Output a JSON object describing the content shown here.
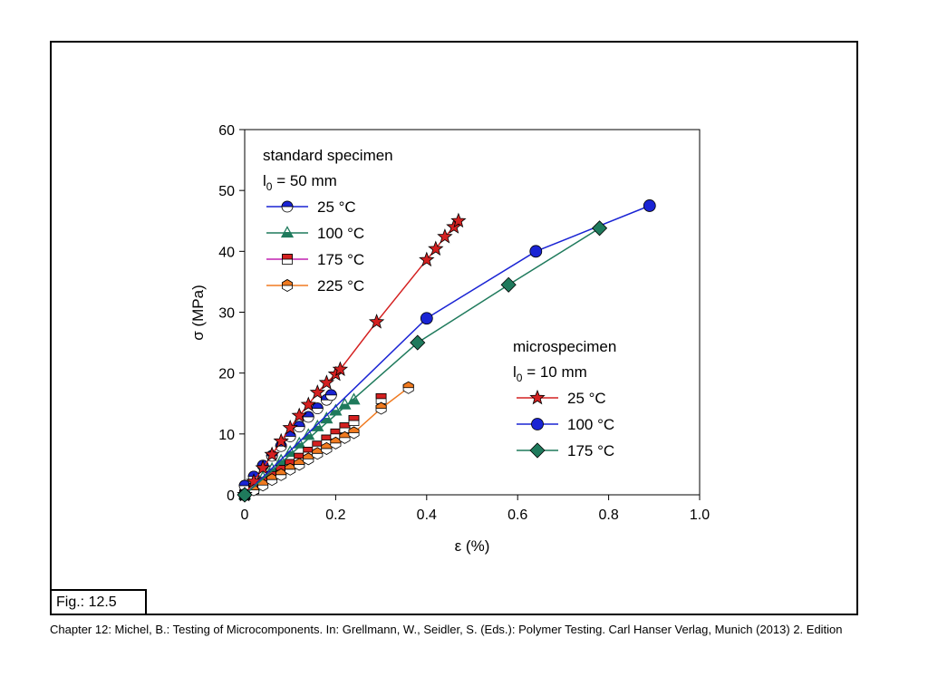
{
  "figure_label": "Fig.: 12.5",
  "caption": "Chapter 12: Michel, B.: Testing of Microcomponents. In: Grellmann, W., Seidler, S. (Eds.): Polymer Testing. Carl Hanser Verlag, Munich (2013) 2. Edition",
  "colors": {
    "red": "#d42020",
    "blue": "#1a24d4",
    "green": "#1f7a5c",
    "magenta": "#c020b0",
    "orange": "#f07a20"
  },
  "chart_data": {
    "type": "scatter",
    "xlabel": "ε (%)",
    "ylabel": "σ (MPa)",
    "xlim": [
      0,
      1.0
    ],
    "ylim": [
      0,
      60
    ],
    "xticks": [
      0,
      0.2,
      0.4,
      0.6,
      0.8,
      1.0
    ],
    "xtick_labels": [
      "0",
      "0.2",
      "0.4",
      "0.6",
      "0.8",
      "1.0"
    ],
    "yticks": [
      0,
      10,
      20,
      30,
      40,
      50,
      60
    ],
    "ytick_labels": [
      "0",
      "10",
      "20",
      "30",
      "40",
      "50",
      "60"
    ],
    "grid": false,
    "legends": [
      {
        "title_line1": "standard specimen",
        "title_line2_base": "l",
        "title_line2_sub": "0",
        "title_line2_rest": " = 50 mm",
        "placement": "top-left",
        "entries": [
          "25 °C",
          "100 °C",
          "175 °C",
          "225 °C"
        ]
      },
      {
        "title_line1": "microspecimen",
        "title_line2_base": "l",
        "title_line2_sub": "0",
        "title_line2_rest": " = 10 mm",
        "placement": "right",
        "entries": [
          "25 °C",
          "100 °C",
          "175 °C"
        ]
      }
    ],
    "series": [
      {
        "group": "standard",
        "color": "#1a24d4",
        "marker": "half-circle",
        "line": false,
        "x": [
          0.0,
          0.02,
          0.04,
          0.06,
          0.08,
          0.1,
          0.12,
          0.14,
          0.16,
          0.18,
          0.19
        ],
        "y": [
          1.5,
          3.0,
          4.8,
          6.4,
          8.0,
          9.6,
          11.2,
          12.8,
          14.2,
          15.6,
          16.4
        ]
      },
      {
        "group": "standard",
        "color": "#1f7a5c",
        "marker": "triangle",
        "line": false,
        "x": [
          0.0,
          0.02,
          0.04,
          0.06,
          0.08,
          0.1,
          0.12,
          0.14,
          0.16,
          0.18,
          0.2,
          0.22,
          0.24
        ],
        "y": [
          0.0,
          1.4,
          2.8,
          4.2,
          5.6,
          7.0,
          8.4,
          9.8,
          11.2,
          12.5,
          13.8,
          14.8,
          15.6
        ]
      },
      {
        "group": "standard",
        "color": "#d42020",
        "marker": "half-square",
        "line": false,
        "x": [
          0.0,
          0.02,
          0.04,
          0.06,
          0.08,
          0.1,
          0.12,
          0.14,
          0.16,
          0.18,
          0.2,
          0.22,
          0.24,
          0.3
        ],
        "y": [
          0.0,
          1.0,
          2.0,
          3.0,
          4.0,
          5.0,
          6.0,
          7.0,
          8.0,
          9.0,
          10.0,
          11.0,
          12.2,
          15.8
        ]
      },
      {
        "group": "standard",
        "color": "#f07a20",
        "marker": "half-hexagon",
        "line": true,
        "x": [
          0.0,
          0.02,
          0.04,
          0.06,
          0.08,
          0.1,
          0.12,
          0.14,
          0.16,
          0.18,
          0.2,
          0.22,
          0.24,
          0.3,
          0.36
        ],
        "y": [
          0.0,
          0.8,
          1.6,
          2.5,
          3.3,
          4.2,
          5.0,
          5.9,
          6.8,
          7.6,
          8.5,
          9.4,
          10.2,
          14.2,
          17.6
        ]
      },
      {
        "group": "micro",
        "color": "#d42020",
        "marker": "star",
        "line": true,
        "x": [
          0.0,
          0.02,
          0.04,
          0.06,
          0.08,
          0.1,
          0.12,
          0.14,
          0.16,
          0.18,
          0.2,
          0.21,
          0.29,
          0.4,
          0.42,
          0.44,
          0.46,
          0.47
        ],
        "y": [
          0.0,
          2.2,
          4.4,
          6.6,
          8.8,
          11.0,
          13.0,
          14.8,
          16.8,
          18.4,
          19.8,
          20.6,
          28.4,
          38.6,
          40.4,
          42.4,
          44.0,
          45.0
        ]
      },
      {
        "group": "micro",
        "color": "#1a24d4",
        "marker": "circle",
        "line": true,
        "x": [
          0.0,
          0.4,
          0.64,
          0.89
        ],
        "y": [
          0.0,
          29.0,
          40.0,
          47.5
        ]
      },
      {
        "group": "micro",
        "color": "#1f7a5c",
        "marker": "diamond",
        "line": true,
        "x": [
          0.0,
          0.38,
          0.58,
          0.78
        ],
        "y": [
          0.0,
          25.0,
          34.5,
          43.8
        ]
      }
    ]
  }
}
